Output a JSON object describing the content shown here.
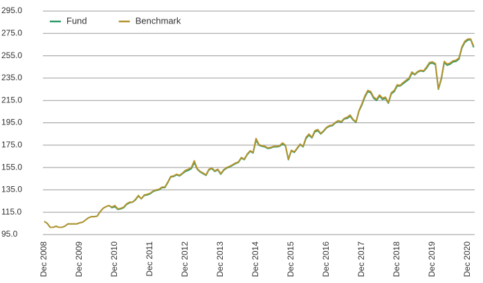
{
  "chart_data": {
    "type": "line",
    "categories": [
      "Dec 2008",
      null,
      null,
      null,
      null,
      null,
      null,
      null,
      null,
      null,
      null,
      null,
      "Dec 2009",
      null,
      null,
      null,
      null,
      null,
      null,
      null,
      null,
      null,
      null,
      null,
      "Dec 2010",
      null,
      null,
      null,
      null,
      null,
      null,
      null,
      null,
      null,
      null,
      null,
      "Dec 2011",
      null,
      null,
      null,
      null,
      null,
      null,
      null,
      null,
      null,
      null,
      null,
      "Dec 2012",
      null,
      null,
      null,
      null,
      null,
      null,
      null,
      null,
      null,
      null,
      null,
      "Dec 2013",
      null,
      null,
      null,
      null,
      null,
      null,
      null,
      null,
      null,
      null,
      null,
      "Dec 2014",
      null,
      null,
      null,
      null,
      null,
      null,
      null,
      null,
      null,
      null,
      null,
      "Dec 2015",
      null,
      null,
      null,
      null,
      null,
      null,
      null,
      null,
      null,
      null,
      null,
      "Dec 2016",
      null,
      null,
      null,
      null,
      null,
      null,
      null,
      null,
      null,
      null,
      null,
      "Dec 2017",
      null,
      null,
      null,
      null,
      null,
      null,
      null,
      null,
      null,
      null,
      null,
      "Dec 2018",
      null,
      null,
      null,
      null,
      null,
      null,
      null,
      null,
      null,
      null,
      null,
      "Dec 2019",
      null,
      null,
      null,
      null,
      null,
      null,
      null,
      null,
      null,
      null,
      null,
      "Dec 2020",
      null,
      null
    ],
    "series": [
      {
        "name": "Fund",
        "color": "#2f9a6c",
        "values": [
          106.8,
          105,
          101.5,
          101.5,
          102.5,
          101.5,
          101.5,
          102.5,
          104.5,
          104.5,
          104.5,
          104.5,
          105.5,
          106,
          108,
          110,
          111,
          111,
          111.5,
          115.5,
          118.5,
          120,
          121,
          119,
          120,
          117.5,
          118,
          119,
          122,
          123.5,
          124,
          126,
          129.5,
          127,
          130,
          130.5,
          131.5,
          133.5,
          134.5,
          135,
          137,
          137,
          141.5,
          146.5,
          147,
          148.5,
          147.5,
          149.5,
          151.5,
          152.5,
          154,
          159.5,
          153.5,
          151,
          149.5,
          148,
          153,
          154,
          151.5,
          153,
          149,
          152.5,
          154.5,
          155.5,
          157,
          158.5,
          159.5,
          163.5,
          162,
          166.5,
          169.5,
          168,
          179.5,
          175,
          174,
          173.5,
          172,
          172.5,
          173.5,
          173.5,
          174,
          176,
          174.5,
          162,
          170,
          168.5,
          172,
          175.5,
          173.5,
          181,
          184,
          181.5,
          187,
          188,
          185,
          187.5,
          190.5,
          192,
          192.5,
          195,
          196.5,
          195.5,
          198.5,
          199,
          201,
          197.5,
          195.5,
          205.5,
          211,
          218,
          223,
          222,
          217,
          215,
          219,
          216,
          217,
          212.5,
          221,
          223,
          228,
          228,
          230,
          232,
          234,
          239.5,
          238,
          240.5,
          241.5,
          241,
          244,
          248,
          248.5,
          247,
          225,
          234,
          249,
          246.5,
          247.5,
          249.5,
          250,
          252,
          262,
          267,
          269,
          269.5,
          262.5
        ]
      },
      {
        "name": "Benchmark",
        "color": "#b4942e",
        "values": [
          106.8,
          105,
          101.5,
          101.5,
          102.5,
          101.5,
          101.5,
          102.5,
          104.5,
          104.5,
          104.5,
          104.5,
          105.5,
          106,
          108,
          110,
          111,
          111,
          111.5,
          115.5,
          118.5,
          120,
          121,
          119.5,
          121,
          118,
          118.5,
          119.5,
          122.5,
          124,
          124,
          126.5,
          130,
          127,
          130.5,
          131,
          132,
          134,
          135,
          135.5,
          137.5,
          137.5,
          142,
          147,
          147.5,
          149,
          148,
          150,
          152.5,
          153.5,
          155,
          161,
          154,
          151.5,
          150,
          148.5,
          153.5,
          154.5,
          152,
          153.5,
          149.5,
          153,
          155,
          156,
          157.5,
          159,
          160,
          164,
          162.5,
          167,
          170,
          168.5,
          181,
          175.5,
          174.5,
          174,
          172.5,
          173,
          174,
          174,
          174.5,
          177,
          175,
          162.5,
          170.5,
          169,
          172.5,
          176,
          174,
          182,
          185,
          182,
          188,
          189,
          185.5,
          188,
          191,
          192.5,
          193,
          195.5,
          197,
          196,
          199,
          200,
          202,
          198,
          196,
          206,
          212,
          219,
          224,
          223,
          218,
          216,
          220,
          217,
          218,
          213,
          222,
          224,
          229,
          228.5,
          231,
          233,
          235,
          240.5,
          238.5,
          241,
          242,
          241.5,
          245,
          249,
          249.5,
          248,
          225.5,
          235,
          250,
          247.5,
          248.5,
          250.5,
          251,
          253,
          263,
          268,
          270,
          270,
          263.5
        ]
      }
    ],
    "ylim": [
      95,
      295
    ],
    "yticks": [
      {
        "value": 95,
        "label": "95.0"
      },
      {
        "value": 115,
        "label": "115.0"
      },
      {
        "value": 135,
        "label": "135.0"
      },
      {
        "value": 155,
        "label": "155.0"
      },
      {
        "value": 175,
        "label": "175.0"
      },
      {
        "value": 195,
        "label": "195.0"
      },
      {
        "value": 215,
        "label": "215.0"
      },
      {
        "value": 235,
        "label": "235.0"
      },
      {
        "value": 255,
        "label": "255.0"
      },
      {
        "value": 275,
        "label": "275.0"
      },
      {
        "value": 295,
        "label": "295.0"
      }
    ],
    "grid": true,
    "legend": "top-left"
  }
}
